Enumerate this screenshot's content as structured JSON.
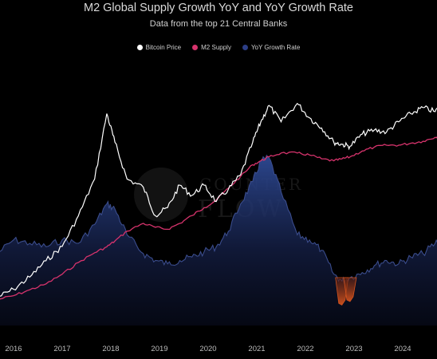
{
  "title": "M2 Global Supply Growth YoY and YoY Growth Rate",
  "subtitle": "Data from the top 21 Central Banks",
  "watermark": {
    "line1": "COUNTER",
    "line2": "FLOW"
  },
  "colors": {
    "background": "#000000",
    "bitcoin": "#ffffff",
    "m2": "#d6336c",
    "yoy": "#2c3f7a",
    "yoy_negative": "#d4531e",
    "legend_yoy": "#2c3e86"
  },
  "chart_data": {
    "type": "line",
    "title": "M2 Global Supply Growth YoY and YoY Growth Rate",
    "subtitle": "Data from the top 21 Central Banks",
    "xlabel": "",
    "ylabel": "",
    "grid": false,
    "legend_position": "top-center",
    "x_ticks": [
      "2016",
      "2017",
      "2018",
      "2019",
      "2020",
      "2021",
      "2022",
      "2023",
      "2024"
    ],
    "x": [
      "2015-09",
      "2016-01",
      "2016-05",
      "2016-09",
      "2017-01",
      "2017-05",
      "2017-09",
      "2017-12",
      "2018-02",
      "2018-05",
      "2018-09",
      "2018-12",
      "2019-03",
      "2019-06",
      "2019-09",
      "2019-12",
      "2020-03",
      "2020-06",
      "2020-09",
      "2020-12",
      "2021-02",
      "2021-04",
      "2021-07",
      "2021-11",
      "2022-02",
      "2022-05",
      "2022-08",
      "2022-10",
      "2022-12",
      "2023-03",
      "2023-06",
      "2023-09",
      "2023-12",
      "2024-03",
      "2024-06",
      "2024-09",
      "2024-11"
    ],
    "series": [
      {
        "name": "Bitcoin Price",
        "color": "#ffffff",
        "values": [
          2,
          6,
          12,
          20,
          27,
          42,
          60,
          92,
          78,
          60,
          56,
          42,
          46,
          57,
          52,
          57,
          49,
          55,
          62,
          78,
          88,
          96,
          88,
          97,
          90,
          85,
          78,
          77,
          76,
          82,
          84,
          83,
          88,
          92,
          95,
          93,
          98
        ]
      },
      {
        "name": "M2 Supply",
        "color": "#d6336c",
        "values": [
          1,
          3,
          6,
          9,
          14,
          20,
          25,
          28,
          31,
          36,
          40,
          38,
          37,
          40,
          44,
          48,
          52,
          58,
          64,
          70,
          72,
          74,
          76,
          76,
          75,
          73,
          72,
          73,
          74,
          77,
          79,
          80,
          80,
          81,
          82,
          84,
          86
        ]
      },
      {
        "name": "YoY Growth Rate",
        "color": "#2c3e86",
        "values": [
          14,
          22,
          20,
          18,
          22,
          20,
          31,
          43,
          40,
          25,
          14,
          10,
          8,
          10,
          12,
          15,
          18,
          27,
          43,
          56,
          68,
          70,
          50,
          25,
          22,
          16,
          2,
          -2,
          0,
          3,
          7,
          10,
          8,
          12,
          14,
          20,
          25
        ]
      }
    ]
  },
  "legend": [
    {
      "label": "Bitcoin Price",
      "color": "#ffffff"
    },
    {
      "label": "M2 Supply",
      "color": "#d6336c"
    },
    {
      "label": "YoY Growth Rate",
      "color": "#2c3e86"
    }
  ]
}
